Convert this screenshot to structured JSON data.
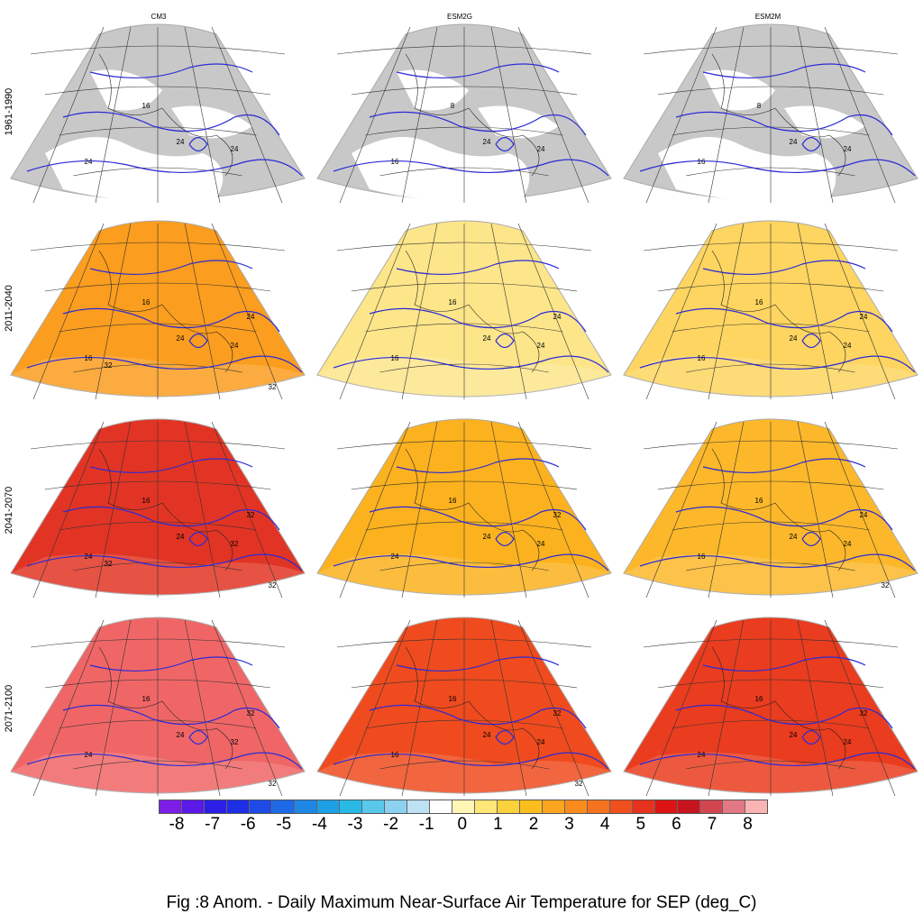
{
  "columns": [
    "CM3",
    "ESM2G",
    "ESM2M"
  ],
  "rows": [
    "1961-1990",
    "2011-2040",
    "2041-2070",
    "2071-2100"
  ],
  "panels": [
    [
      "#c8c8c8",
      "#fb9d1e",
      "#e23424",
      "#f06666"
    ],
    [
      "#c8c8c8",
      "#fde58a",
      "#fcb21e",
      "#ef4b1e"
    ],
    [
      "#c8c8c8",
      "#fdd560",
      "#fcb82a",
      "#ea3c1e"
    ]
  ],
  "panel_labels": [
    [
      [
        "16",
        "24",
        "24",
        "24"
      ],
      [
        "16",
        "16",
        "24",
        "24",
        "24",
        "32",
        "32"
      ],
      [
        "16",
        "24",
        "24",
        "32",
        "32",
        "32",
        "32"
      ],
      [
        "16",
        "24",
        "24",
        "32",
        "32",
        "32"
      ]
    ],
    [
      [
        "8",
        "16",
        "24",
        "24"
      ],
      [
        "16",
        "16",
        "24",
        "24",
        "24"
      ],
      [
        "16",
        "24",
        "24",
        "24",
        "32"
      ],
      [
        "16",
        "16",
        "24",
        "24",
        "32",
        "32"
      ]
    ],
    [
      [
        "8",
        "16",
        "24",
        "24"
      ],
      [
        "16",
        "16",
        "24",
        "24",
        "24"
      ],
      [
        "16",
        "16",
        "24",
        "24",
        "24",
        "32"
      ],
      [
        "16",
        "24",
        "24",
        "24",
        "32"
      ]
    ]
  ],
  "colorbar": {
    "colors": [
      "#7d1ee6",
      "#5a19e6",
      "#2d1ee6",
      "#1e2de6",
      "#1e4be6",
      "#1e69e6",
      "#1e87e6",
      "#1ea0e6",
      "#28b9e6",
      "#5ac8eb",
      "#8cd2f0",
      "#bee1f5",
      "#ffffff",
      "#fff5b4",
      "#ffe678",
      "#fcd23c",
      "#fcbe1e",
      "#fca51e",
      "#fa8c1e",
      "#f5721e",
      "#f0501e",
      "#e6321e",
      "#dc1414",
      "#c8141e",
      "#d24650",
      "#e17882",
      "#fab4b4"
    ],
    "tick_labels": [
      "-8",
      "-7",
      "-6",
      "-5",
      "-4",
      "-3",
      "-2",
      "-1",
      "0",
      "1",
      "2",
      "3",
      "4",
      "5",
      "6",
      "7",
      "8"
    ]
  },
  "caption": "Fig :8  Anom.  - Daily Maximum Near-Surface Air Temperature for SEP (deg_C)"
}
